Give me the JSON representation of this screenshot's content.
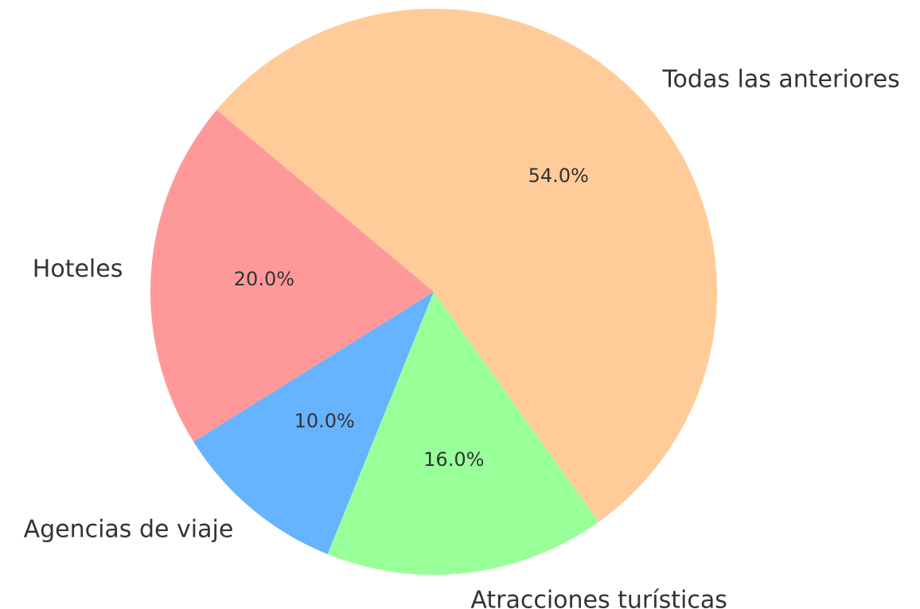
{
  "chart_data": {
    "type": "pie",
    "categories": [
      "Hoteles",
      "Agencias de viaje",
      "Atracciones turísticas",
      "Todas las anteriores"
    ],
    "values": [
      20,
      10,
      16,
      54
    ],
    "value_labels": [
      "20.0%",
      "10.0%",
      "16.0%",
      "54.0%"
    ],
    "colors": [
      "#ff9999",
      "#66b3ff",
      "#99ff99",
      "#ffcc99"
    ],
    "start_angle": 140
  }
}
